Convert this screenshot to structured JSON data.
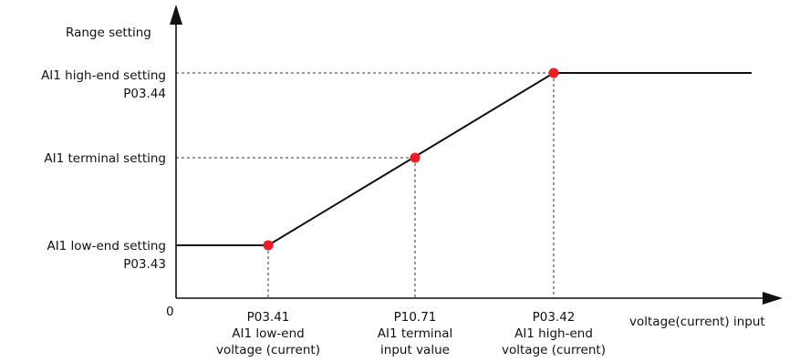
{
  "figure": {
    "y_axis_title": "Range setting",
    "x_axis_title": "voltage(current) input",
    "origin": "0",
    "y_levels": [
      {
        "lines": [
          "AI1 high-end setting",
          "P03.44"
        ]
      },
      {
        "lines": [
          "AI1 terminal setting"
        ]
      },
      {
        "lines": [
          "AI1 low-end setting",
          "P03.43"
        ]
      }
    ],
    "x_points": [
      {
        "lines": [
          "P03.41",
          "AI1 low-end",
          "voltage (current)"
        ]
      },
      {
        "lines": [
          "P10.71",
          "AI1 terminal",
          "input value"
        ]
      },
      {
        "lines": [
          "P03.42",
          "AI1 high-end",
          "voltage (current)"
        ]
      }
    ]
  },
  "colors": {
    "line": "#111111",
    "point": "#ee1c25",
    "guide": "#333333"
  }
}
